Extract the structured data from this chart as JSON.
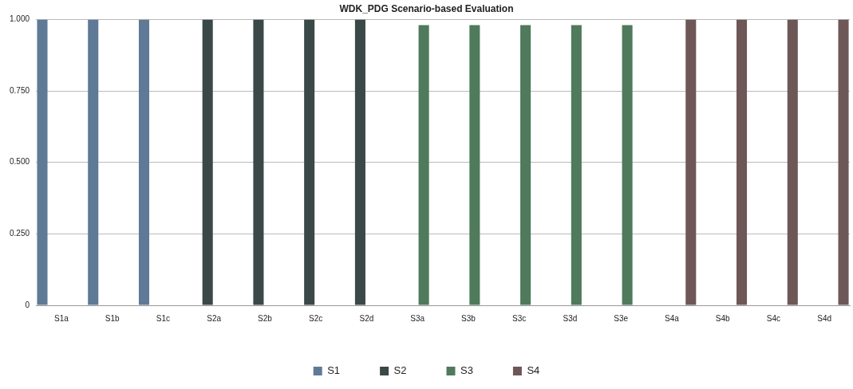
{
  "chart_data": {
    "type": "bar",
    "title": "WDK_PDG Scenario-based Evaluation",
    "categories": [
      "S1a",
      "S1b",
      "S1c",
      "S2a",
      "S2b",
      "S2c",
      "S2d",
      "S3a",
      "S3b",
      "S3c",
      "S3d",
      "S3e",
      "S4a",
      "S4b",
      "S4c",
      "S4d"
    ],
    "series": [
      {
        "name": "S1",
        "color": "#5f7a96",
        "values": [
          1,
          1,
          1,
          null,
          null,
          null,
          null,
          null,
          null,
          null,
          null,
          null,
          null,
          null,
          null,
          null
        ]
      },
      {
        "name": "S2",
        "color": "#3a4848",
        "values": [
          null,
          null,
          null,
          1,
          1,
          1,
          1,
          null,
          null,
          null,
          null,
          null,
          null,
          null,
          null,
          null
        ]
      },
      {
        "name": "S3",
        "color": "#4f7a5c",
        "values": [
          null,
          null,
          null,
          null,
          null,
          null,
          null,
          0.98,
          0.98,
          0.98,
          0.98,
          0.98,
          null,
          null,
          null,
          null
        ]
      },
      {
        "name": "S4",
        "color": "#6e5757",
        "values": [
          null,
          null,
          null,
          null,
          null,
          null,
          null,
          null,
          null,
          null,
          null,
          null,
          1,
          1,
          1,
          1
        ]
      }
    ],
    "ylim": [
      0,
      1
    ],
    "yticks": [
      {
        "value": 0,
        "label": "0"
      },
      {
        "value": 0.25,
        "label": "0.250"
      },
      {
        "value": 0.5,
        "label": "0.500"
      },
      {
        "value": 0.75,
        "label": "0.750"
      },
      {
        "value": 1,
        "label": "1.000"
      }
    ],
    "grid": "y",
    "legend": "bottom"
  }
}
